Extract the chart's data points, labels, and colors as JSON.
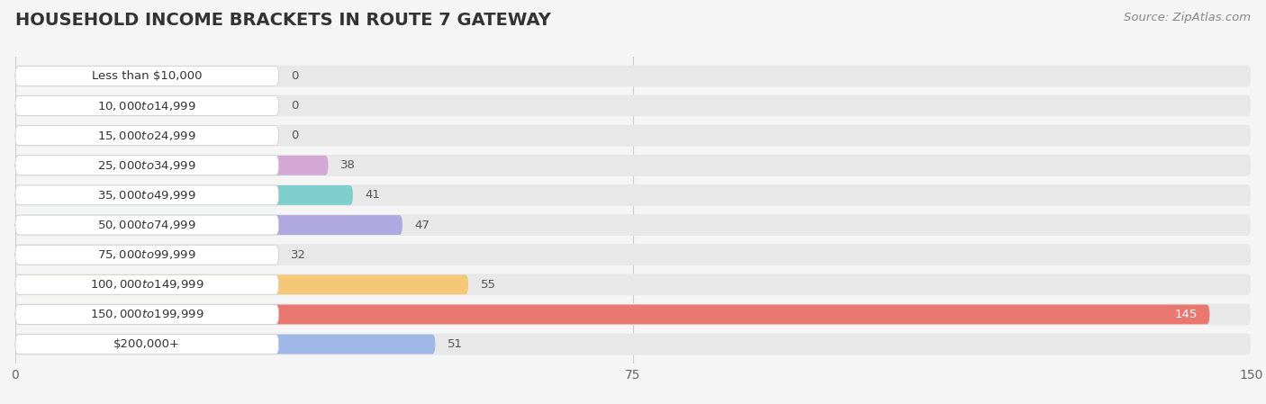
{
  "title": "HOUSEHOLD INCOME BRACKETS IN ROUTE 7 GATEWAY",
  "source": "Source: ZipAtlas.com",
  "categories": [
    "Less than $10,000",
    "$10,000 to $14,999",
    "$15,000 to $24,999",
    "$25,000 to $34,999",
    "$35,000 to $49,999",
    "$50,000 to $74,999",
    "$75,000 to $99,999",
    "$100,000 to $149,999",
    "$150,000 to $199,999",
    "$200,000+"
  ],
  "values": [
    0,
    0,
    0,
    38,
    41,
    47,
    32,
    55,
    145,
    51
  ],
  "bar_colors": [
    "#f5c9a0",
    "#f4a0a0",
    "#a8c8f0",
    "#d4a8d4",
    "#7ecece",
    "#b0a8e0",
    "#f4a0c0",
    "#f5c878",
    "#e87870",
    "#a0b8e8"
  ],
  "xlim_data": [
    0,
    150
  ],
  "xticks": [
    0,
    75,
    150
  ],
  "background_color": "#f5f5f5",
  "bar_bg_color": "#e8e8e8",
  "label_box_color": "#ffffff",
  "label_color_dark": "#555555",
  "label_color_white": "#ffffff",
  "title_fontsize": 14,
  "label_fontsize": 9.5,
  "tick_fontsize": 10,
  "source_fontsize": 9.5
}
